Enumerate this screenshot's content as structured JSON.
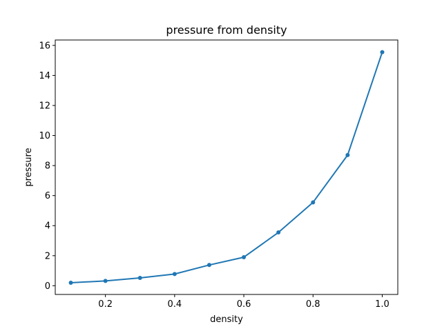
{
  "chart_data": {
    "type": "line",
    "title": "pressure from density",
    "xlabel": "density",
    "ylabel": "pressure",
    "xlim": [
      0.055,
      1.045
    ],
    "ylim": [
      -0.58,
      16.36
    ],
    "x_ticks": [
      0.2,
      0.4,
      0.6,
      0.8,
      1.0
    ],
    "x_tick_labels": [
      "0.2",
      "0.4",
      "0.6",
      "0.8",
      "1.0"
    ],
    "y_ticks": [
      0,
      2,
      4,
      6,
      8,
      10,
      12,
      14,
      16
    ],
    "y_tick_labels": [
      "0",
      "2",
      "4",
      "6",
      "8",
      "10",
      "12",
      "14",
      "16"
    ],
    "grid": false,
    "series": [
      {
        "color": "#1f77b4",
        "marker": "circle",
        "x": [
          0.1,
          0.2,
          0.3,
          0.4,
          0.5,
          0.6,
          0.7,
          0.8,
          0.9,
          1.0
        ],
        "y": [
          0.2,
          0.32,
          0.52,
          0.78,
          1.38,
          1.9,
          3.55,
          5.55,
          8.7,
          15.55
        ]
      }
    ]
  }
}
